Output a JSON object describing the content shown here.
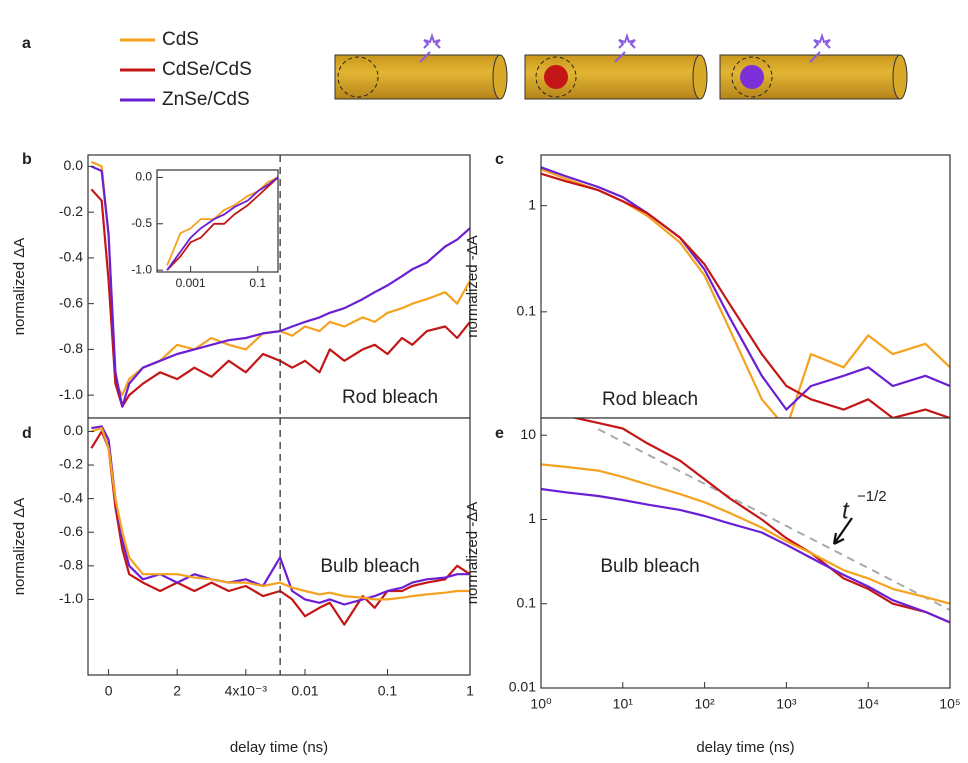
{
  "figure": {
    "panel": "a"
  },
  "chart_data": [
    {
      "type": "line",
      "panel": "b",
      "xscale": "broken",
      "yscale": "linear",
      "x_break": 0.005,
      "xlim": [
        -0.0006,
        1
      ],
      "ylim": [
        -1.1,
        0.05
      ],
      "yticks": [
        {
          "value": 0,
          "label": "0.0"
        },
        -0.2,
        -0.4,
        -0.6,
        -0.8,
        {
          "value": -1,
          "label": "-1.0"
        }
      ],
      "ylabel": "normalized ΔA",
      "annotation": "Rod bleach",
      "x": [
        -0.0005,
        -0.0002,
        0,
        0.0002,
        0.0004,
        0.0006,
        0.001,
        0.0015,
        0.002,
        0.0025,
        0.003,
        0.0035,
        0.004,
        0.0045,
        0.005,
        0.007,
        0.01,
        0.015,
        0.02,
        0.03,
        0.05,
        0.07,
        0.1,
        0.15,
        0.2,
        0.3,
        0.5,
        0.7,
        1
      ],
      "series": [
        {
          "name": "CdS",
          "color": "#f5a21e",
          "values": [
            0.02,
            0.0,
            -0.3,
            -0.95,
            -1.0,
            -0.93,
            -0.88,
            -0.85,
            -0.78,
            -0.8,
            -0.75,
            -0.78,
            -0.8,
            -0.73,
            -0.72,
            -0.74,
            -0.7,
            -0.72,
            -0.68,
            -0.7,
            -0.66,
            -0.68,
            -0.64,
            -0.62,
            -0.6,
            -0.58,
            -0.55,
            -0.6,
            -0.5
          ]
        },
        {
          "name": "CdSe/CdS",
          "color": "#c41616",
          "values": [
            -0.1,
            -0.15,
            -0.5,
            -0.95,
            -1.05,
            -1.0,
            -0.95,
            -0.9,
            -0.93,
            -0.88,
            -0.92,
            -0.85,
            -0.9,
            -0.82,
            -0.85,
            -0.88,
            -0.85,
            -0.9,
            -0.8,
            -0.85,
            -0.8,
            -0.78,
            -0.82,
            -0.75,
            -0.78,
            -0.72,
            -0.7,
            -0.75,
            -0.68
          ]
        },
        {
          "name": "ZnSe/CdS",
          "color": "#6a1fd4",
          "values": [
            0.0,
            -0.02,
            -0.3,
            -0.9,
            -1.05,
            -0.95,
            -0.88,
            -0.85,
            -0.82,
            -0.8,
            -0.78,
            -0.76,
            -0.75,
            -0.73,
            -0.72,
            -0.7,
            -0.68,
            -0.66,
            -0.64,
            -0.62,
            -0.58,
            -0.55,
            -0.52,
            -0.48,
            -0.45,
            -0.42,
            -0.35,
            -0.32,
            -0.27
          ]
        }
      ]
    },
    {
      "type": "line",
      "xscale": "log",
      "yscale": "linear",
      "xlim": [
        0.0001,
        0.4
      ],
      "ylim": [
        -1.02,
        0.08
      ],
      "xticks": [
        0.001,
        0.1
      ],
      "yticks": [
        {
          "value": 0,
          "label": "0.0"
        },
        -0.5,
        {
          "value": -1,
          "label": "-1.0"
        }
      ],
      "x": [
        0.0002,
        0.0005,
        0.001,
        0.002,
        0.005,
        0.01,
        0.02,
        0.05,
        0.1,
        0.2,
        0.4
      ],
      "series": [
        {
          "color": "#f5a21e",
          "values": [
            -0.95,
            -0.6,
            -0.55,
            -0.45,
            -0.45,
            -0.35,
            -0.3,
            -0.2,
            -0.15,
            -0.05,
            0.0
          ]
        },
        {
          "color": "#c41616",
          "values": [
            -1.0,
            -0.85,
            -0.7,
            -0.65,
            -0.5,
            -0.5,
            -0.4,
            -0.3,
            -0.2,
            -0.1,
            0.0
          ]
        },
        {
          "color": "#6a1fd4",
          "values": [
            -1.0,
            -0.8,
            -0.65,
            -0.55,
            -0.45,
            -0.4,
            -0.32,
            -0.25,
            -0.15,
            -0.08,
            0.0
          ]
        }
      ]
    },
    {
      "type": "line",
      "panel": "c",
      "xscale": "log",
      "yscale": "log",
      "xlim": [
        1,
        100000
      ],
      "ylim": [
        0.01,
        3
      ],
      "yticks": [
        1,
        0.1
      ],
      "ylabel": "normalized -ΔA",
      "annotation": "Rod bleach",
      "x": [
        1,
        2,
        5,
        10,
        20,
        50,
        100,
        200,
        500,
        1000,
        2000,
        5000,
        10000,
        20000,
        50000,
        100000
      ],
      "series": [
        {
          "color": "#f5a21e",
          "values": [
            2.2,
            1.8,
            1.4,
            1.1,
            0.8,
            0.45,
            0.22,
            0.07,
            0.015,
            0.008,
            0.04,
            0.03,
            0.06,
            0.04,
            0.05,
            0.03
          ]
        },
        {
          "color": "#6a1fd4",
          "values": [
            2.3,
            1.9,
            1.5,
            1.2,
            0.85,
            0.5,
            0.25,
            0.09,
            0.025,
            0.012,
            0.02,
            0.025,
            0.03,
            0.02,
            0.025,
            0.02
          ]
        },
        {
          "color": "#c41616",
          "values": [
            2.0,
            1.7,
            1.4,
            1.1,
            0.85,
            0.5,
            0.28,
            0.12,
            0.04,
            0.02,
            0.015,
            0.012,
            0.015,
            0.01,
            0.012,
            0.01
          ]
        }
      ]
    },
    {
      "type": "line",
      "panel": "d",
      "xscale": "broken",
      "yscale": "linear",
      "x_break": 0.005,
      "xlim": [
        -0.0006,
        1
      ],
      "ylim": [
        -1.45,
        0.08
      ],
      "xticks": [
        0,
        {
          "value": 0.002,
          "label": "2"
        },
        {
          "value": 0.004,
          "label": "4x10⁻³"
        },
        0.01,
        0.1,
        1
      ],
      "yticks": [
        {
          "value": 0,
          "label": "0.0"
        },
        -0.2,
        -0.4,
        -0.6,
        -0.8,
        {
          "value": -1,
          "label": "-1.0"
        }
      ],
      "ylabel": "normalized ΔA",
      "xlabel": "delay time (ns)",
      "annotation": "Bulb bleach",
      "x": [
        -0.0005,
        -0.0002,
        0,
        0.0002,
        0.0004,
        0.0006,
        0.001,
        0.0015,
        0.002,
        0.0025,
        0.003,
        0.0035,
        0.004,
        0.0045,
        0.005,
        0.007,
        0.01,
        0.015,
        0.02,
        0.03,
        0.05,
        0.07,
        0.1,
        0.15,
        0.2,
        0.3,
        0.5,
        0.7,
        1
      ],
      "series": [
        {
          "color": "#c41616",
          "values": [
            -0.1,
            0.0,
            -0.1,
            -0.45,
            -0.7,
            -0.85,
            -0.9,
            -0.95,
            -0.9,
            -0.95,
            -0.9,
            -0.95,
            -0.92,
            -0.98,
            -0.95,
            -1.0,
            -1.1,
            -1.05,
            -1.02,
            -1.15,
            -0.98,
            -1.05,
            -0.95,
            -0.95,
            -0.92,
            -0.9,
            -0.88,
            -0.8,
            -0.85
          ]
        },
        {
          "color": "#6a1fd4",
          "values": [
            0.02,
            0.03,
            -0.05,
            -0.4,
            -0.65,
            -0.8,
            -0.88,
            -0.85,
            -0.9,
            -0.85,
            -0.88,
            -0.9,
            -0.88,
            -0.92,
            -0.75,
            -0.95,
            -1.0,
            -1.02,
            -1.0,
            -1.03,
            -1.0,
            -0.98,
            -0.95,
            -0.93,
            -0.9,
            -0.88,
            -0.87,
            -0.85,
            -0.85
          ]
        },
        {
          "color": "#f5a21e",
          "values": [
            0.0,
            0.02,
            -0.1,
            -0.4,
            -0.6,
            -0.75,
            -0.85,
            -0.85,
            -0.85,
            -0.87,
            -0.88,
            -0.9,
            -0.9,
            -0.92,
            -0.9,
            -0.93,
            -0.95,
            -0.97,
            -0.96,
            -0.98,
            -0.99,
            -1.0,
            -1.0,
            -0.99,
            -0.98,
            -0.97,
            -0.96,
            -0.95,
            -0.95
          ]
        }
      ]
    },
    {
      "type": "line",
      "panel": "e",
      "xscale": "log",
      "yscale": "log",
      "xlim": [
        1,
        100000
      ],
      "ylim": [
        0.01,
        16
      ],
      "xticks": [
        {
          "value": 1,
          "label": "10⁰"
        },
        {
          "value": 10,
          "label": "10¹"
        },
        {
          "value": 100,
          "label": "10²"
        },
        {
          "value": 1000,
          "label": "10³"
        },
        {
          "value": 10000,
          "label": "10⁴"
        },
        {
          "value": 100000,
          "label": "10⁵"
        }
      ],
      "yticks": [
        10,
        1,
        0.1,
        0.01
      ],
      "ylabel": "normalized -ΔA",
      "xlabel": "delay time (ns)",
      "annotation": "Bulb bleach",
      "fit_label": {
        "text": "t",
        "exponent": "−1/2"
      },
      "fit": {
        "x": [
          5,
          100000
        ],
        "values": [
          11.8,
          0.084
        ],
        "color": "#aaaaaa"
      },
      "x": [
        1,
        2,
        5,
        10,
        20,
        50,
        100,
        200,
        500,
        1000,
        2000,
        5000,
        10000,
        20000,
        50000,
        100000
      ],
      "series": [
        {
          "color": "#c41616",
          "values": [
            20,
            17,
            14,
            12,
            8,
            5,
            3,
            1.8,
            1.0,
            0.6,
            0.4,
            0.2,
            0.15,
            0.1,
            0.08,
            0.06
          ]
        },
        {
          "color": "#f5a21e",
          "values": [
            4.5,
            4.2,
            3.8,
            3.2,
            2.6,
            2.0,
            1.6,
            1.2,
            0.8,
            0.55,
            0.4,
            0.25,
            0.2,
            0.15,
            0.12,
            0.1
          ]
        },
        {
          "color": "#6a1fd4",
          "values": [
            2.3,
            2.1,
            1.9,
            1.7,
            1.5,
            1.3,
            1.1,
            0.9,
            0.7,
            0.5,
            0.35,
            0.22,
            0.16,
            0.11,
            0.08,
            0.06
          ]
        }
      ]
    }
  ]
}
